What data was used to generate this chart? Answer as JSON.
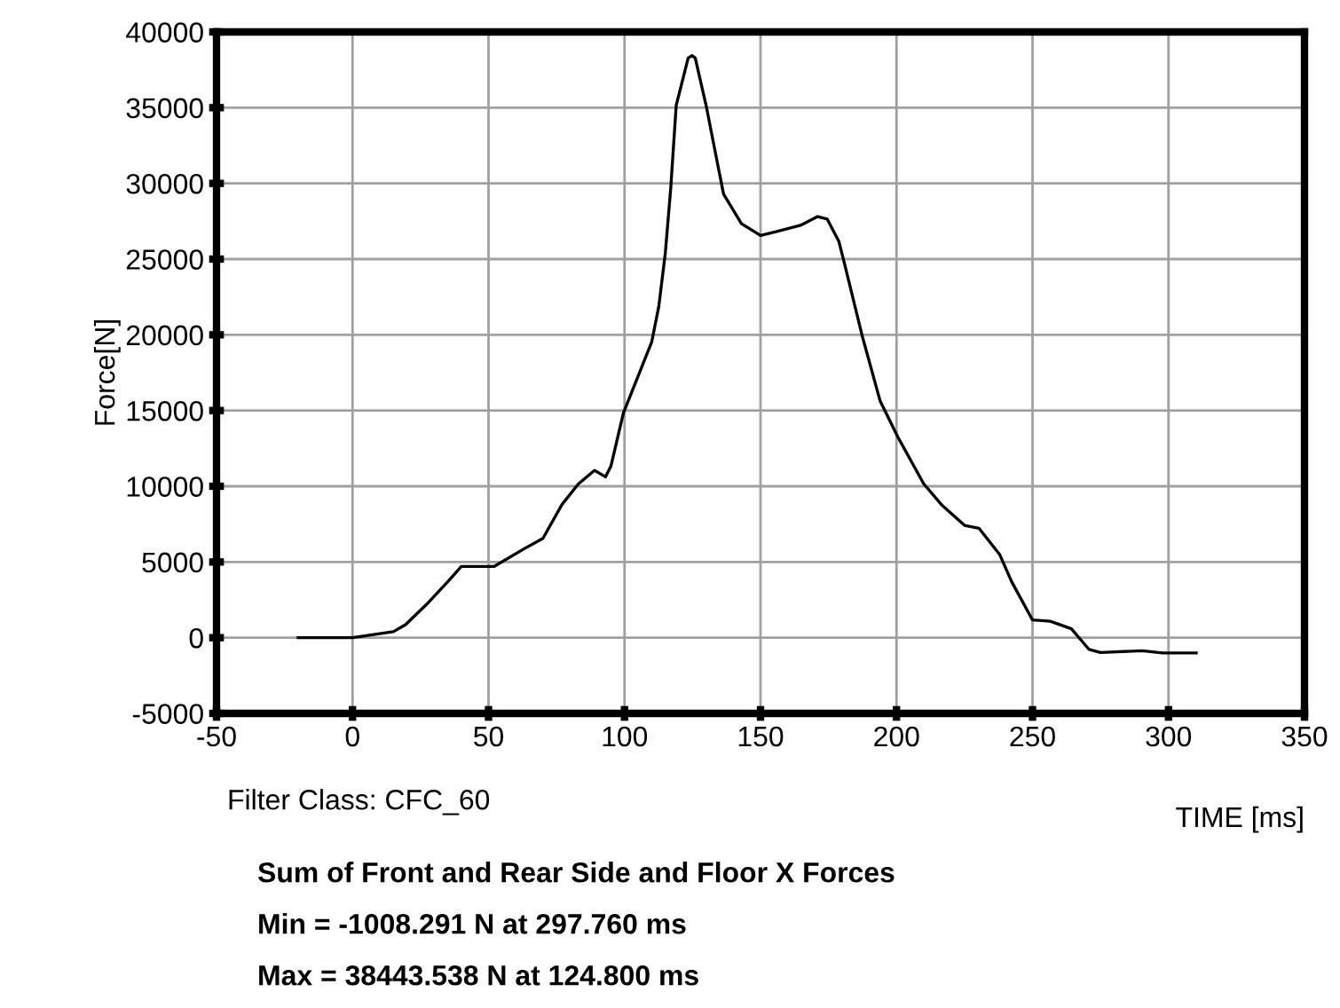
{
  "chart_data": {
    "type": "line",
    "title": "Sum of Front and Rear Side and Floor X Forces",
    "xlabel": "TIME [ms]",
    "ylabel": "Force[N]",
    "annotations": [
      "Filter Class: CFC_60",
      "Min = -1008.291 N at 297.760 ms",
      "Max = 38443.538 N at 124.800 ms"
    ],
    "series": [
      {
        "color": "#000000",
        "x": [
          -20,
          0,
          15,
          19.5,
          28,
          35,
          40,
          52,
          63,
          70,
          77,
          83,
          89,
          93,
          95,
          99.6,
          110,
          112.6,
          115,
          117,
          119,
          123.4,
          124.8,
          126,
          130,
          133,
          136.4,
          143,
          150,
          156,
          164.7,
          171,
          174.5,
          178.8,
          181,
          187.4,
          194,
          200.4,
          210,
          216.5,
          225,
          230.3,
          238,
          242.3,
          250,
          256.5,
          264.3,
          270.8,
          275,
          290.3,
          297.8,
          310.2
        ],
        "values": [
          0,
          0,
          400,
          860,
          2340,
          3700,
          4700,
          4700,
          5860,
          6560,
          8790,
          10150,
          11050,
          10620,
          11330,
          14840,
          19530,
          21875,
          25400,
          29700,
          35150,
          38280,
          38444,
          38280,
          35150,
          32400,
          29300,
          27340,
          26560,
          26830,
          27230,
          27810,
          27650,
          26170,
          24610,
          19920,
          15620,
          13280,
          10160,
          8790,
          7420,
          7230,
          5470,
          3710,
          1170,
          1090,
          590,
          -780,
          -980,
          -860,
          -1008,
          -1008
        ]
      }
    ],
    "xlim": [
      -50,
      350
    ],
    "xticks": [
      -50,
      0,
      50,
      100,
      150,
      200,
      250,
      300,
      350
    ],
    "ylim": [
      -5000,
      40000
    ],
    "yticks": [
      -5000,
      0,
      5000,
      10000,
      15000,
      20000,
      25000,
      30000,
      35000,
      40000
    ],
    "grid": true,
    "line_style": "solid",
    "marker": "none",
    "legend": false
  }
}
